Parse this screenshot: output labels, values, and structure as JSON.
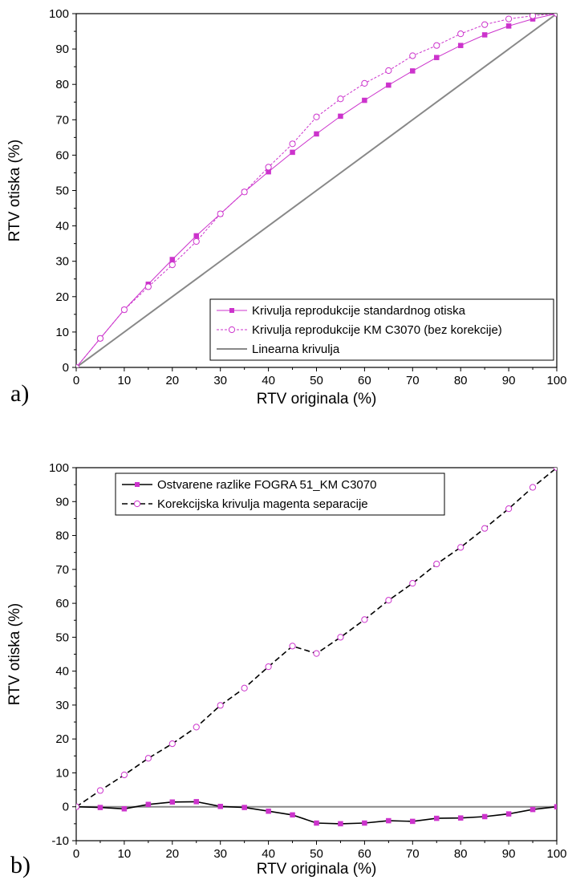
{
  "chart_data": [
    {
      "type": "line",
      "panel_label": "a)",
      "xlabel": "RTV originala (%)",
      "ylabel": "RTV otiska (%)",
      "xlim": [
        0,
        100
      ],
      "ylim": [
        0,
        100
      ],
      "xticks": [
        0,
        10,
        20,
        30,
        40,
        50,
        60,
        70,
        80,
        90,
        100
      ],
      "yticks": [
        0,
        10,
        20,
        30,
        40,
        50,
        60,
        70,
        80,
        90,
        100
      ],
      "legend_position": "bottom-right",
      "series": [
        {
          "name": "Krivulja reprodukcije standardnog otiska",
          "color": "#cc33cc",
          "line": "solid",
          "marker": "filled-square",
          "x": [
            0,
            5,
            10,
            15,
            20,
            25,
            30,
            35,
            40,
            45,
            50,
            55,
            60,
            65,
            70,
            75,
            80,
            85,
            90,
            95,
            100
          ],
          "y": [
            0,
            8.2,
            16.3,
            23.5,
            30.5,
            37.2,
            43.4,
            49.6,
            55.3,
            60.8,
            66.0,
            71.0,
            75.5,
            79.8,
            83.8,
            87.6,
            91.0,
            94.0,
            96.5,
            98.5,
            100
          ]
        },
        {
          "name": "Krivulja reprodukcije KM C3070 (bez korekcije)",
          "color": "#cc33cc",
          "line": "dashed",
          "marker": "open-circle",
          "x": [
            0,
            5,
            10,
            15,
            20,
            25,
            30,
            35,
            40,
            45,
            50,
            55,
            60,
            65,
            70,
            75,
            80,
            85,
            90,
            95,
            100
          ],
          "y": [
            0,
            8.2,
            16.3,
            22.8,
            29.0,
            35.6,
            43.4,
            49.6,
            56.6,
            63.2,
            70.8,
            75.9,
            80.3,
            83.9,
            88.1,
            91.0,
            94.3,
            96.9,
            98.5,
            99.4,
            100
          ]
        },
        {
          "name": "Linearna krivulja",
          "color": "#888888",
          "line": "solid",
          "marker": "none",
          "x": [
            0,
            100
          ],
          "y": [
            0,
            100
          ]
        }
      ]
    },
    {
      "type": "line",
      "panel_label": "b)",
      "xlabel": "RTV originala (%)",
      "ylabel": "RTV otiska (%)",
      "xlim": [
        0,
        100
      ],
      "ylim": [
        -10,
        100
      ],
      "xticks": [
        0,
        10,
        20,
        30,
        40,
        50,
        60,
        70,
        80,
        90,
        100
      ],
      "yticks": [
        -10,
        0,
        10,
        20,
        30,
        40,
        50,
        60,
        70,
        80,
        90,
        100
      ],
      "legend_position": "top-left",
      "series": [
        {
          "name": "Ostvarene razlike FOGRA 51_KM C3070",
          "color": "#000000",
          "marker_color": "#cc33cc",
          "line": "solid",
          "marker": "filled-square",
          "x": [
            0,
            5,
            10,
            15,
            20,
            25,
            30,
            35,
            40,
            45,
            50,
            55,
            60,
            65,
            70,
            75,
            80,
            85,
            90,
            95,
            100
          ],
          "y": [
            0,
            -0.2,
            -0.6,
            0.7,
            1.4,
            1.5,
            0.1,
            -0.2,
            -1.3,
            -2.4,
            -4.8,
            -5.0,
            -4.8,
            -4.1,
            -4.3,
            -3.4,
            -3.3,
            -2.9,
            -2.1,
            -0.8,
            0
          ]
        },
        {
          "name": "Korekcijska krivulja magenta separacije",
          "color": "#000000",
          "marker_color": "#cc33cc",
          "line": "dashed",
          "marker": "open-circle",
          "x": [
            0,
            5,
            10,
            15,
            20,
            25,
            30,
            35,
            40,
            45,
            50,
            55,
            60,
            65,
            70,
            75,
            80,
            85,
            90,
            95,
            100
          ],
          "y": [
            0,
            4.8,
            9.4,
            14.3,
            18.6,
            23.5,
            29.9,
            35.0,
            41.3,
            47.4,
            45.2,
            50.0,
            55.2,
            60.9,
            65.9,
            71.6,
            76.5,
            82.1,
            87.9,
            94.2,
            100
          ]
        },
        {
          "name": "",
          "color": "#888888",
          "line": "solid",
          "marker": "none",
          "x": [
            0,
            100
          ],
          "y": [
            0,
            0
          ]
        }
      ]
    }
  ]
}
